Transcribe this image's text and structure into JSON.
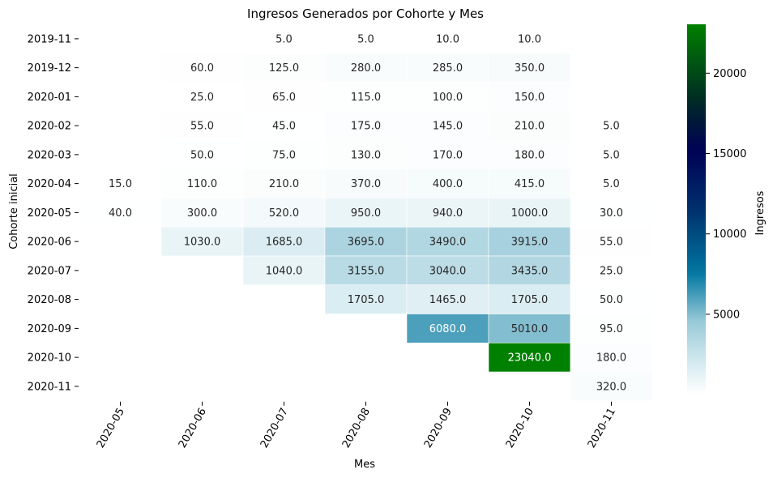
{
  "chart_data": {
    "type": "heatmap",
    "title": "Ingresos Generados por Cohorte y Mes",
    "xlabel": "Mes",
    "ylabel": "Cohorte inicial",
    "columns": [
      "2020-05",
      "2020-06",
      "2020-07",
      "2020-08",
      "2020-09",
      "2020-10",
      "2020-11"
    ],
    "rows": [
      "2019-11",
      "2019-12",
      "2020-01",
      "2020-02",
      "2020-03",
      "2020-04",
      "2020-05",
      "2020-06",
      "2020-07",
      "2020-08",
      "2020-09",
      "2020-10",
      "2020-11"
    ],
    "values": [
      [
        null,
        null,
        5.0,
        5.0,
        10.0,
        10.0,
        null
      ],
      [
        null,
        60.0,
        125.0,
        280.0,
        285.0,
        350.0,
        null
      ],
      [
        null,
        25.0,
        65.0,
        115.0,
        100.0,
        150.0,
        null
      ],
      [
        null,
        55.0,
        45.0,
        175.0,
        145.0,
        210.0,
        5.0
      ],
      [
        null,
        50.0,
        75.0,
        130.0,
        170.0,
        180.0,
        5.0
      ],
      [
        15.0,
        110.0,
        210.0,
        370.0,
        400.0,
        415.0,
        5.0
      ],
      [
        40.0,
        300.0,
        520.0,
        950.0,
        940.0,
        1000.0,
        30.0
      ],
      [
        null,
        1030.0,
        1685.0,
        3695.0,
        3490.0,
        3915.0,
        55.0
      ],
      [
        null,
        null,
        1040.0,
        3155.0,
        3040.0,
        3435.0,
        25.0
      ],
      [
        null,
        null,
        null,
        1705.0,
        1465.0,
        1705.0,
        50.0
      ],
      [
        null,
        null,
        null,
        null,
        6080.0,
        5010.0,
        95.0
      ],
      [
        null,
        null,
        null,
        null,
        null,
        23040.0,
        180.0
      ],
      [
        null,
        null,
        null,
        null,
        null,
        null,
        320.0
      ]
    ],
    "colormap": "ocean_r",
    "colorbar": {
      "label": "Ingresos",
      "min": 5.0,
      "max": 23040.0,
      "ticks": [
        5000,
        10000,
        15000,
        20000
      ]
    },
    "grid": false,
    "legend": "colorbar-right"
  }
}
